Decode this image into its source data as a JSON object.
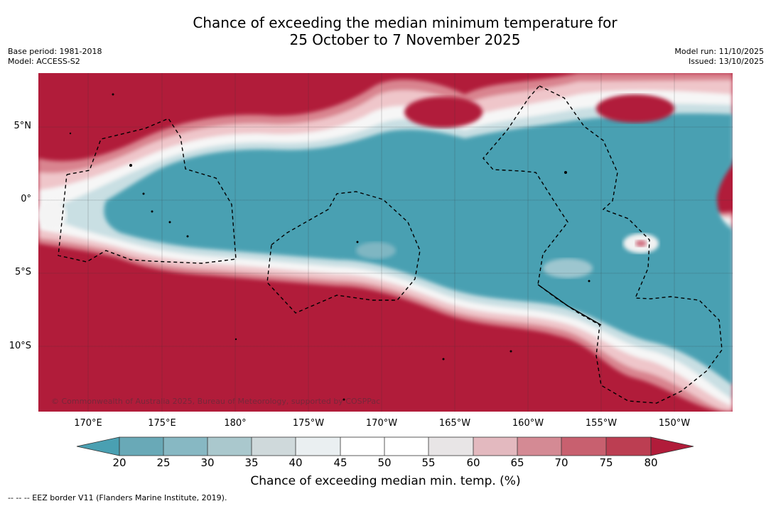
{
  "title_line1": "Chance of exceeding the median minimum temperature for",
  "title_line2": "25 October to 7 November 2025",
  "base_period": "Base period: 1981-2018",
  "model": "Model: ACCESS-S2",
  "model_run": "Model run: 11/10/2025",
  "issued": "Issued: 13/10/2025",
  "lat_labels": [
    "5°N",
    "0°",
    "5°S",
    "10°S"
  ],
  "lon_labels": [
    "170°E",
    "175°E",
    "180°",
    "175°W",
    "170°W",
    "165°W",
    "160°W",
    "155°W",
    "150°W"
  ],
  "colorbar": {
    "ticks": [
      "20",
      "25",
      "30",
      "35",
      "40",
      "45",
      "50",
      "55",
      "60",
      "65",
      "70",
      "75",
      "80"
    ],
    "title": "Chance of exceeding median min. temp. (%)",
    "low_color": "#4aa0b2",
    "high_color": "#b11c3a"
  },
  "copyright": "© Commonwealth of Australia 2025, Bureau of Meteorology, supported by COSPPac",
  "eez_note": "--  --  -- EEZ border V11 (Flanders Marine Institute, 2019)."
}
